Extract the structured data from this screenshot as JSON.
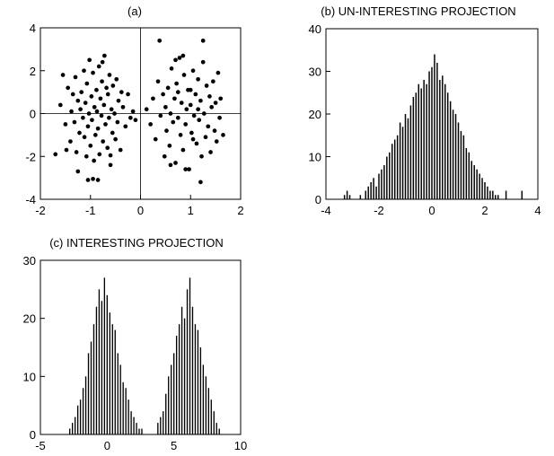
{
  "chart_data": [
    {
      "id": "a",
      "type": "scatter",
      "title": "(a)",
      "xlabel": "",
      "ylabel": "",
      "xlim": [
        -2,
        2
      ],
      "ylim": [
        -4,
        4
      ],
      "xticks": [
        -2,
        -1,
        0,
        1,
        2
      ],
      "yticks": [
        -4,
        -2,
        0,
        2,
        4
      ],
      "xtick_labels": [
        "-2",
        "-1",
        "0",
        "1",
        "2"
      ],
      "ytick_labels": [
        "-4",
        "-2",
        "0",
        "2",
        "4"
      ],
      "zero_lines": true,
      "series": [
        {
          "points": [
            [
              -1.6,
              0.4
            ],
            [
              -1.5,
              -0.5
            ],
            [
              -1.45,
              1.2
            ],
            [
              -1.4,
              -1.3
            ],
            [
              -1.38,
              0.1
            ],
            [
              -1.35,
              0.9
            ],
            [
              -1.32,
              -0.4
            ],
            [
              -1.3,
              1.7
            ],
            [
              -1.28,
              -1.8
            ],
            [
              -1.25,
              0.6
            ],
            [
              -1.22,
              -0.9
            ],
            [
              -1.2,
              0.2
            ],
            [
              -1.18,
              1.0
            ],
            [
              -1.15,
              -0.2
            ],
            [
              -1.13,
              2.0
            ],
            [
              -1.12,
              -1.1
            ],
            [
              -1.1,
              0.5
            ],
            [
              -1.08,
              -2.0
            ],
            [
              -1.07,
              1.4
            ],
            [
              -1.05,
              -0.6
            ],
            [
              -1.03,
              0.0
            ],
            [
              -1.02,
              2.5
            ],
            [
              -1.0,
              -1.5
            ],
            [
              -0.98,
              0.8
            ],
            [
              -0.97,
              -0.3
            ],
            [
              -0.95,
              1.9
            ],
            [
              -0.93,
              -2.2
            ],
            [
              -0.92,
              0.3
            ],
            [
              -0.9,
              -1.0
            ],
            [
              -0.88,
              1.1
            ],
            [
              -0.87,
              0.1
            ],
            [
              -0.85,
              -0.7
            ],
            [
              -0.83,
              2.2
            ],
            [
              -0.82,
              -1.9
            ],
            [
              -0.8,
              0.7
            ],
            [
              -0.78,
              -0.1
            ],
            [
              -0.77,
              1.5
            ],
            [
              -0.75,
              -1.3
            ],
            [
              -0.73,
              0.4
            ],
            [
              -0.72,
              2.7
            ],
            [
              -0.7,
              -0.5
            ],
            [
              -0.68,
              1.2
            ],
            [
              -0.66,
              -1.6
            ],
            [
              -0.65,
              0.9
            ],
            [
              -0.63,
              -0.2
            ],
            [
              -0.62,
              1.8
            ],
            [
              -0.6,
              -2.4
            ],
            [
              -0.58,
              0.2
            ],
            [
              -0.56,
              -0.9
            ],
            [
              -0.55,
              1.3
            ],
            [
              -0.52,
              0.0
            ],
            [
              -0.5,
              -1.2
            ],
            [
              -0.48,
              1.6
            ],
            [
              -0.46,
              -0.4
            ],
            [
              -0.44,
              0.6
            ],
            [
              -0.4,
              -1.7
            ],
            [
              -0.38,
              1.0
            ],
            [
              -0.35,
              0.3
            ],
            [
              -0.3,
              -0.6
            ],
            [
              -0.25,
              0.9
            ],
            [
              -0.2,
              -0.2
            ],
            [
              -0.15,
              0.1
            ],
            [
              -0.1,
              -0.3
            ],
            [
              -1.25,
              -2.7
            ],
            [
              -1.05,
              -3.1
            ],
            [
              -0.95,
              -3.05
            ],
            [
              -0.85,
              -3.1
            ],
            [
              -1.7,
              -1.9
            ],
            [
              -1.55,
              1.8
            ],
            [
              -1.48,
              -1.7
            ],
            [
              -0.76,
              2.4
            ],
            [
              -0.6,
              -1.95
            ],
            [
              0.12,
              0.2
            ],
            [
              0.2,
              -0.5
            ],
            [
              0.25,
              0.7
            ],
            [
              0.3,
              -1.2
            ],
            [
              0.35,
              1.5
            ],
            [
              0.38,
              3.4
            ],
            [
              0.4,
              -0.1
            ],
            [
              0.45,
              0.9
            ],
            [
              0.48,
              -2.0
            ],
            [
              0.5,
              0.3
            ],
            [
              0.52,
              -0.8
            ],
            [
              0.55,
              1.2
            ],
            [
              0.58,
              -1.5
            ],
            [
              0.6,
              0.0
            ],
            [
              0.62,
              2.1
            ],
            [
              0.65,
              -0.4
            ],
            [
              0.68,
              0.7
            ],
            [
              0.7,
              -2.3
            ],
            [
              0.72,
              1.4
            ],
            [
              0.75,
              -0.2
            ],
            [
              0.78,
              2.6
            ],
            [
              0.8,
              -1.0
            ],
            [
              0.82,
              0.5
            ],
            [
              0.85,
              -1.7
            ],
            [
              0.87,
              1.8
            ],
            [
              0.9,
              -0.5
            ],
            [
              0.92,
              0.2
            ],
            [
              0.95,
              1.1
            ],
            [
              0.97,
              -2.6
            ],
            [
              1.0,
              0.4
            ],
            [
              1.02,
              -0.9
            ],
            [
              1.05,
              2.0
            ],
            [
              1.07,
              -0.1
            ],
            [
              1.1,
              0.9
            ],
            [
              1.12,
              -1.4
            ],
            [
              1.15,
              1.6
            ],
            [
              1.17,
              -0.3
            ],
            [
              1.2,
              0.6
            ],
            [
              1.22,
              -2.0
            ],
            [
              1.25,
              2.4
            ],
            [
              1.27,
              0.0
            ],
            [
              1.3,
              -1.1
            ],
            [
              1.32,
              1.3
            ],
            [
              1.35,
              -0.6
            ],
            [
              1.38,
              0.8
            ],
            [
              1.4,
              -1.8
            ],
            [
              1.42,
              0.3
            ],
            [
              1.45,
              1.5
            ],
            [
              1.48,
              -0.8
            ],
            [
              1.5,
              0.5
            ],
            [
              1.52,
              -1.3
            ],
            [
              1.55,
              1.9
            ],
            [
              1.58,
              -0.2
            ],
            [
              1.6,
              0.7
            ],
            [
              1.65,
              -1.0
            ],
            [
              1.25,
              3.4
            ],
            [
              1.2,
              -3.2
            ],
            [
              0.6,
              -2.4
            ],
            [
              0.7,
              2.5
            ],
            [
              0.85,
              2.7
            ],
            [
              0.9,
              -2.6
            ],
            [
              1.0,
              1.1
            ],
            [
              1.05,
              -1.2
            ],
            [
              1.15,
              0.2
            ],
            [
              0.75,
              1.0
            ]
          ]
        }
      ]
    },
    {
      "id": "b",
      "type": "bar",
      "title": "(b) UN-INTERESTING PROJECTION",
      "xlabel": "",
      "ylabel": "",
      "xlim": [
        -4,
        4
      ],
      "ylim": [
        0,
        40
      ],
      "xticks": [
        -4,
        -2,
        0,
        2,
        4
      ],
      "yticks": [
        0,
        10,
        20,
        30,
        40
      ],
      "xtick_labels": [
        "-4",
        "-2",
        "0",
        "2",
        "4"
      ],
      "ytick_labels": [
        "0",
        "10",
        "20",
        "30",
        "40"
      ],
      "bin_width": 0.05,
      "x": [
        -3.3,
        -3.2,
        -3.1,
        -3.0,
        -2.9,
        -2.8,
        -2.7,
        -2.6,
        -2.5,
        -2.4,
        -2.3,
        -2.2,
        -2.1,
        -2.0,
        -1.9,
        -1.8,
        -1.7,
        -1.6,
        -1.5,
        -1.4,
        -1.3,
        -1.2,
        -1.1,
        -1.0,
        -0.9,
        -0.8,
        -0.7,
        -0.6,
        -0.5,
        -0.4,
        -0.3,
        -0.2,
        -0.1,
        0.0,
        0.1,
        0.2,
        0.3,
        0.4,
        0.5,
        0.6,
        0.7,
        0.8,
        0.9,
        1.0,
        1.1,
        1.2,
        1.3,
        1.4,
        1.5,
        1.6,
        1.7,
        1.8,
        1.9,
        2.0,
        2.1,
        2.2,
        2.3,
        2.4,
        2.5,
        2.6,
        2.7,
        2.8,
        2.9,
        3.0,
        3.1,
        3.2,
        3.3,
        3.4
      ],
      "values": [
        1,
        2,
        1,
        0,
        0,
        0,
        1,
        0,
        2,
        3,
        4,
        5,
        3,
        6,
        7,
        8,
        10,
        11,
        13,
        14,
        15,
        18,
        17,
        20,
        19,
        22,
        24,
        25,
        27,
        26,
        28,
        27,
        30,
        31,
        34,
        32,
        28,
        29,
        27,
        25,
        23,
        21,
        20,
        18,
        16,
        15,
        12,
        11,
        9,
        8,
        7,
        6,
        5,
        4,
        3,
        2,
        2,
        1,
        1,
        0,
        0,
        2,
        0,
        0,
        0,
        0,
        0,
        2
      ]
    },
    {
      "id": "c",
      "type": "bar",
      "title": "(c) INTERESTING PROJECTION",
      "xlabel": "",
      "ylabel": "",
      "xlim": [
        -5,
        10
      ],
      "ylim": [
        0,
        30
      ],
      "xticks": [
        -5,
        0,
        5,
        10
      ],
      "yticks": [
        0,
        10,
        20,
        30
      ],
      "xtick_labels": [
        "-5",
        "0",
        "5",
        "10"
      ],
      "ytick_labels": [
        "0",
        "10",
        "20",
        "30"
      ],
      "bin_width": 0.09,
      "x": [
        -2.8,
        -2.6,
        -2.4,
        -2.2,
        -2.0,
        -1.8,
        -1.6,
        -1.4,
        -1.2,
        -1.0,
        -0.8,
        -0.6,
        -0.4,
        -0.2,
        0.0,
        0.2,
        0.4,
        0.6,
        0.8,
        1.0,
        1.2,
        1.4,
        1.6,
        1.8,
        2.0,
        2.2,
        2.4,
        2.6,
        2.8,
        3.0,
        3.2,
        3.4,
        3.6,
        3.8,
        4.0,
        4.2,
        4.4,
        4.6,
        4.8,
        5.0,
        5.2,
        5.4,
        5.6,
        5.8,
        6.0,
        6.2,
        6.4,
        6.6,
        6.8,
        7.0,
        7.2,
        7.4,
        7.6,
        7.8,
        8.0,
        8.2,
        8.4
      ],
      "values": [
        1,
        2,
        3,
        5,
        6,
        8,
        10,
        14,
        16,
        19,
        22,
        25,
        23,
        27,
        24,
        21,
        19,
        18,
        14,
        12,
        9,
        8,
        6,
        4,
        3,
        2,
        1,
        1,
        0,
        0,
        0,
        0,
        0,
        2,
        3,
        4,
        7,
        10,
        12,
        14,
        17,
        19,
        22,
        20,
        25,
        27,
        22,
        19,
        18,
        15,
        12,
        10,
        8,
        6,
        4,
        2,
        1
      ]
    }
  ]
}
